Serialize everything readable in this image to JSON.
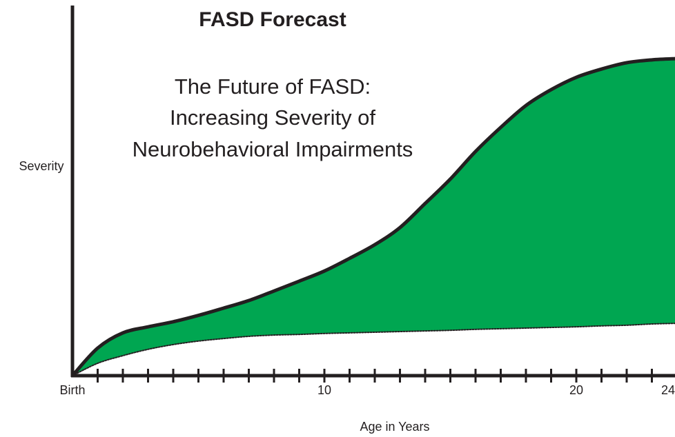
{
  "chart_data": {
    "type": "area_between",
    "title": "FASD Forecast",
    "subtitle": [
      "The Future of FASD:",
      "Increasing Severity of",
      "Neurobehavioral Impairments"
    ],
    "xlabel": "Age in Years",
    "ylabel": "Severity",
    "x": [
      0,
      1,
      2,
      3,
      4,
      5,
      6,
      7,
      8,
      9,
      10,
      11,
      12,
      13,
      14,
      15,
      16,
      17,
      18,
      19,
      20,
      21,
      22,
      23,
      24
    ],
    "xlim": [
      0,
      24
    ],
    "xticks": [
      {
        "value": 0,
        "label": "Birth"
      },
      10,
      20,
      24
    ],
    "ylim": [
      0,
      100
    ],
    "fill_color": "#00a651",
    "series": [
      {
        "color": "#231f20",
        "line_style": "solid",
        "values": [
          0,
          8.7,
          13.5,
          15.4,
          17,
          19,
          21.3,
          23.7,
          26.7,
          29.8,
          33,
          37,
          41.3,
          46.7,
          54.3,
          62,
          70.7,
          78.3,
          85.2,
          90.2,
          94.1,
          96.7,
          98.7,
          99.6,
          100
        ]
      },
      {
        "color": "#231f20",
        "line_style": "dotted",
        "values": [
          0,
          3.9,
          6.3,
          8.3,
          9.8,
          10.9,
          11.7,
          12.4,
          12.8,
          13,
          13.3,
          13.5,
          13.7,
          13.9,
          14.1,
          14.3,
          14.6,
          14.8,
          15,
          15.2,
          15.4,
          15.7,
          15.9,
          16.3,
          16.5
        ]
      }
    ]
  }
}
